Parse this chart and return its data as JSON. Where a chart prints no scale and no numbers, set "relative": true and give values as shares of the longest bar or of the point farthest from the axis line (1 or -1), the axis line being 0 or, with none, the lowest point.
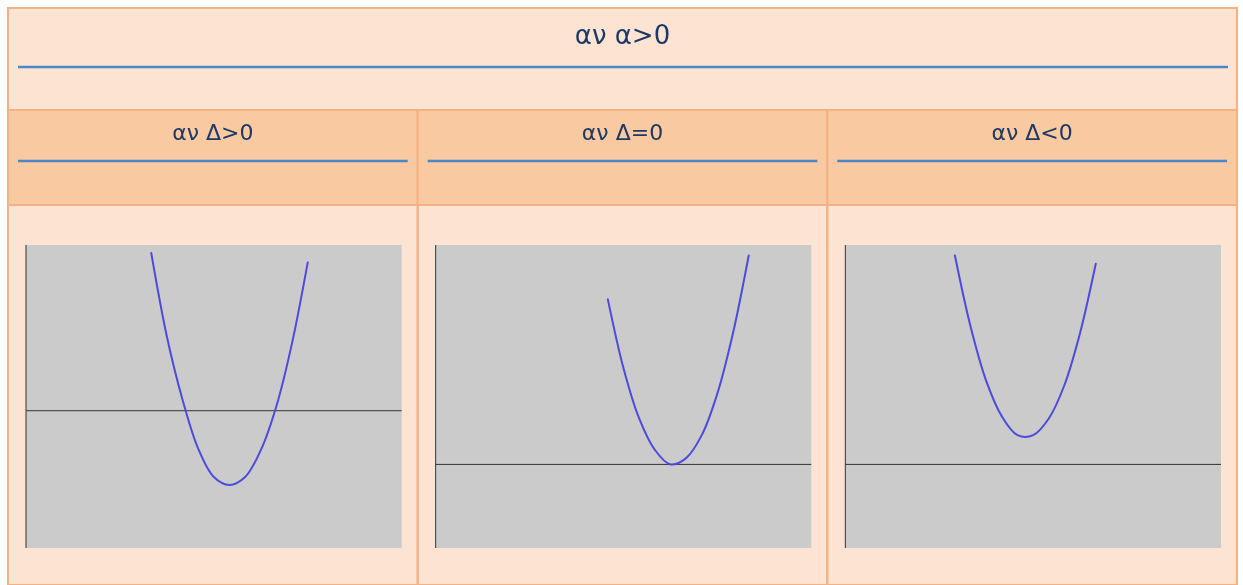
{
  "chart_data": [
    {
      "type": "line",
      "title": "αν Δ>0",
      "annotations": [
        "αν α>0"
      ],
      "relative": true,
      "categories": [
        null,
        null,
        null,
        null,
        null,
        null,
        null,
        null,
        null,
        null,
        null,
        null,
        null,
        null,
        null,
        null,
        null,
        null,
        null,
        null,
        null,
        null,
        null,
        null,
        null
      ],
      "series": [
        {
          "color": "#4b4bdc",
          "values": [
            null,
            null,
            null,
            null,
            null,
            null,
            null,
            null,
            1,
            0.47,
            0.07,
            -0.24,
            -0.42,
            -0.47,
            -0.42,
            -0.25,
            0.03,
            0.43,
            0.94,
            null,
            null,
            null,
            null,
            null,
            null
          ]
        }
      ]
    },
    {
      "type": "line",
      "title": "αν Δ=0",
      "relative": true,
      "categories": [
        null,
        null,
        null,
        null,
        null,
        null,
        null,
        null,
        null,
        null,
        null,
        null,
        null,
        null,
        null,
        null,
        null,
        null,
        null,
        null,
        null,
        null,
        null,
        null,
        null
      ],
      "series": [
        {
          "color": "#4b4bdc",
          "values": [
            null,
            null,
            null,
            null,
            null,
            null,
            null,
            null,
            null,
            null,
            null,
            0.79,
            0.46,
            0.22,
            0.07,
            0,
            0.03,
            0.14,
            0.34,
            0.63,
            1,
            null,
            null,
            null,
            null
          ]
        }
      ]
    },
    {
      "type": "line",
      "title": "αν Δ<0",
      "relative": true,
      "categories": [
        null,
        null,
        null,
        null,
        null,
        null,
        null,
        null,
        null,
        null,
        null,
        null,
        null,
        null,
        null,
        null,
        null,
        null,
        null,
        null,
        null,
        null,
        null,
        null,
        null
      ],
      "series": [
        {
          "color": "#4b4bdc",
          "values": [
            null,
            null,
            null,
            null,
            null,
            null,
            null,
            1,
            0.66,
            0.4,
            0.23,
            0.14,
            0.14,
            0.22,
            0.38,
            0.63,
            0.96,
            null,
            null,
            null,
            null,
            null,
            null,
            null,
            null
          ]
        }
      ]
    }
  ]
}
